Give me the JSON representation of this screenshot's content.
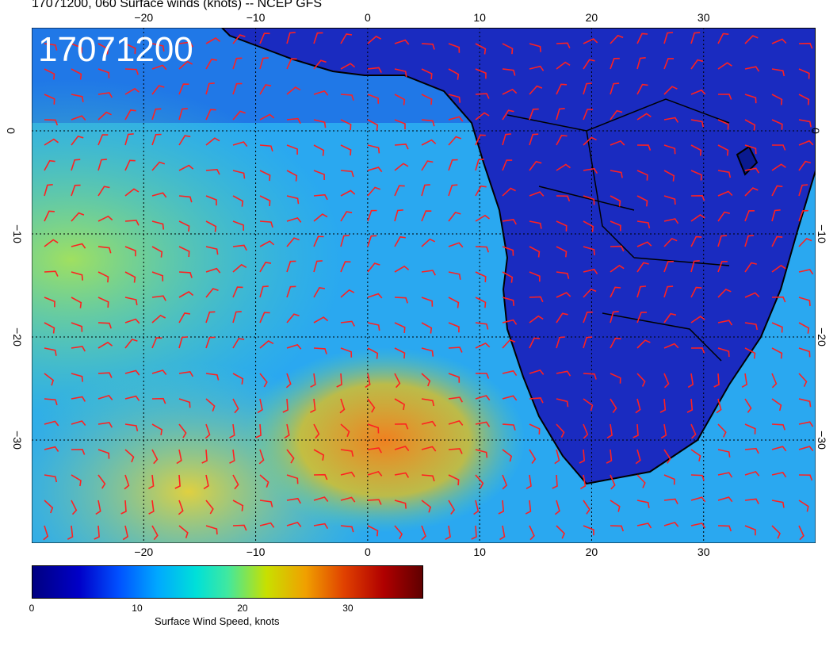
{
  "header": {
    "title": "17071200, 060 Surface winds (knots) -- NCEP GFS",
    "date_stamp": "17071200"
  },
  "map": {
    "longitude_ticks": [
      "-20",
      "-10",
      "0",
      "10",
      "20",
      "30"
    ],
    "latitude_ticks": [
      "0",
      "-10",
      "-20",
      "-30"
    ],
    "lon_range": [
      -30,
      40
    ],
    "lat_range": [
      10,
      -40
    ]
  },
  "colorbar": {
    "ticks": [
      "0",
      "10",
      "20",
      "30"
    ],
    "label": "Surface Wind Speed, knots",
    "range": [
      0,
      37
    ],
    "colors": [
      "#000080",
      "#0000c8",
      "#0050ff",
      "#00a8ff",
      "#00e0d8",
      "#40e8a0",
      "#c8e000",
      "#f0a000",
      "#e04000",
      "#b00000",
      "#600000"
    ]
  },
  "colors": {
    "barb": "#ff2020",
    "land": "#1a2bc0",
    "coast": "#000000"
  }
}
